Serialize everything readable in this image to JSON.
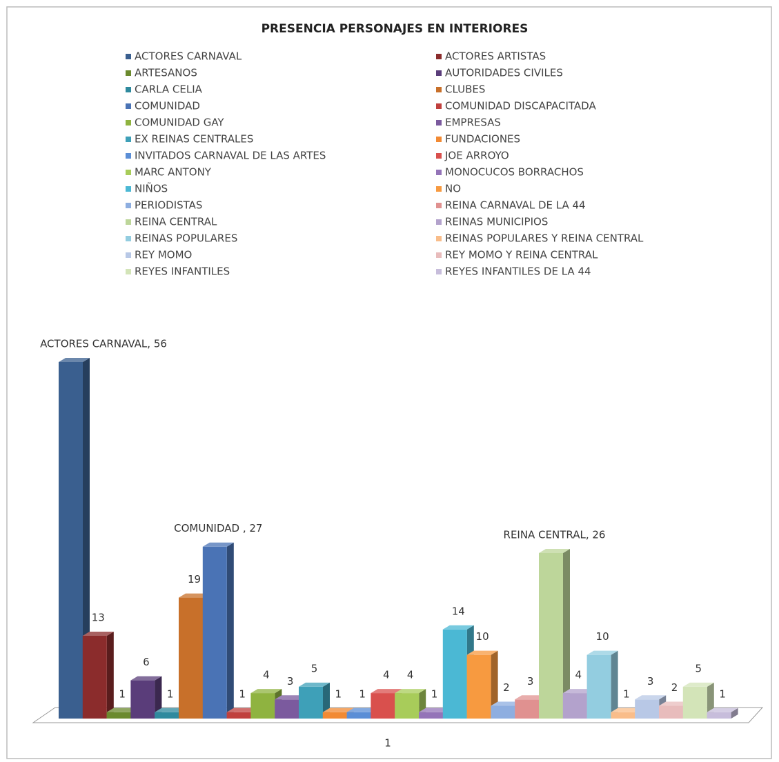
{
  "chart_data": {
    "type": "bar3d",
    "title": "PRESENCIA PERSONAJES EN INTERIORES",
    "categories": [
      "1"
    ],
    "series": [
      {
        "name": "ACTORES CARNAVAL",
        "color": "#3a5f8f",
        "values": [
          56
        ],
        "value_labels": [
          "ACTORES CARNAVAL, 56"
        ]
      },
      {
        "name": "ACTORES ARTISTAS",
        "color": "#8b2c2c",
        "values": [
          13
        ]
      },
      {
        "name": "ARTESANOS",
        "color": "#6b8a2e",
        "values": [
          1
        ]
      },
      {
        "name": "AUTORIDADES CIVILES",
        "color": "#5a3d7a",
        "values": [
          6
        ]
      },
      {
        "name": "CARLA CELIA",
        "color": "#2f8a9e",
        "values": [
          1
        ]
      },
      {
        "name": "CLUBES",
        "color": "#c8702a",
        "values": [
          19
        ]
      },
      {
        "name": "COMUNIDAD",
        "color": "#4a73b5",
        "values": [
          27
        ],
        "value_labels": [
          "COMUNIDAD , 27"
        ]
      },
      {
        "name": "COMUNIDAD DISCAPACITADA",
        "color": "#c0403d",
        "values": [
          1
        ]
      },
      {
        "name": "COMUNIDAD GAY",
        "color": "#8fb340",
        "values": [
          4
        ]
      },
      {
        "name": "EMPRESAS",
        "color": "#7b5a9e",
        "values": [
          3
        ]
      },
      {
        "name": "EX REINAS CENTRALES",
        "color": "#3ea0b8",
        "values": [
          5
        ]
      },
      {
        "name": "FUNDACIONES",
        "color": "#f28a33",
        "values": [
          1
        ]
      },
      {
        "name": "INVITADOS CARNAVAL DE LAS ARTES",
        "color": "#5b8ed6",
        "values": [
          1
        ]
      },
      {
        "name": "JOE ARROYO",
        "color": "#d9504d",
        "values": [
          4
        ]
      },
      {
        "name": "MARC ANTONY",
        "color": "#a8cc5a",
        "values": [
          4
        ]
      },
      {
        "name": "MONOCUCOS BORRACHOS",
        "color": "#9474b8",
        "values": [
          1
        ]
      },
      {
        "name": "NIÑOS",
        "color": "#4bb8d4",
        "values": [
          14
        ]
      },
      {
        "name": "NO",
        "color": "#f79a40",
        "values": [
          10
        ]
      },
      {
        "name": "PERIODISTAS",
        "color": "#8eaee0",
        "values": [
          2
        ]
      },
      {
        "name": "REINA CARNAVAL DE LA 44",
        "color": "#e09190",
        "values": [
          3
        ]
      },
      {
        "name": "REINA CENTRAL",
        "color": "#bdd69a",
        "values": [
          26
        ],
        "value_labels": [
          "REINA CENTRAL, 26"
        ]
      },
      {
        "name": "REINAS MUNICIPIOS",
        "color": "#b3a2cc",
        "values": [
          4
        ]
      },
      {
        "name": "REINAS POPULARES",
        "color": "#93cde0",
        "values": [
          10
        ]
      },
      {
        "name": "REINAS POPULARES Y REINA CENTRAL",
        "color": "#f9bd8a",
        "values": [
          1
        ]
      },
      {
        "name": "REY MOMO",
        "color": "#b8c8e6",
        "values": [
          3
        ]
      },
      {
        "name": "REY MOMO Y REINA CENTRAL",
        "color": "#e8bcbc",
        "values": [
          2
        ]
      },
      {
        "name": "REYES INFANTILES",
        "color": "#d3e4b8",
        "values": [
          5
        ]
      },
      {
        "name": "REYES INFANTILES DE LA 44",
        "color": "#c7bddb",
        "values": [
          1
        ]
      }
    ]
  }
}
